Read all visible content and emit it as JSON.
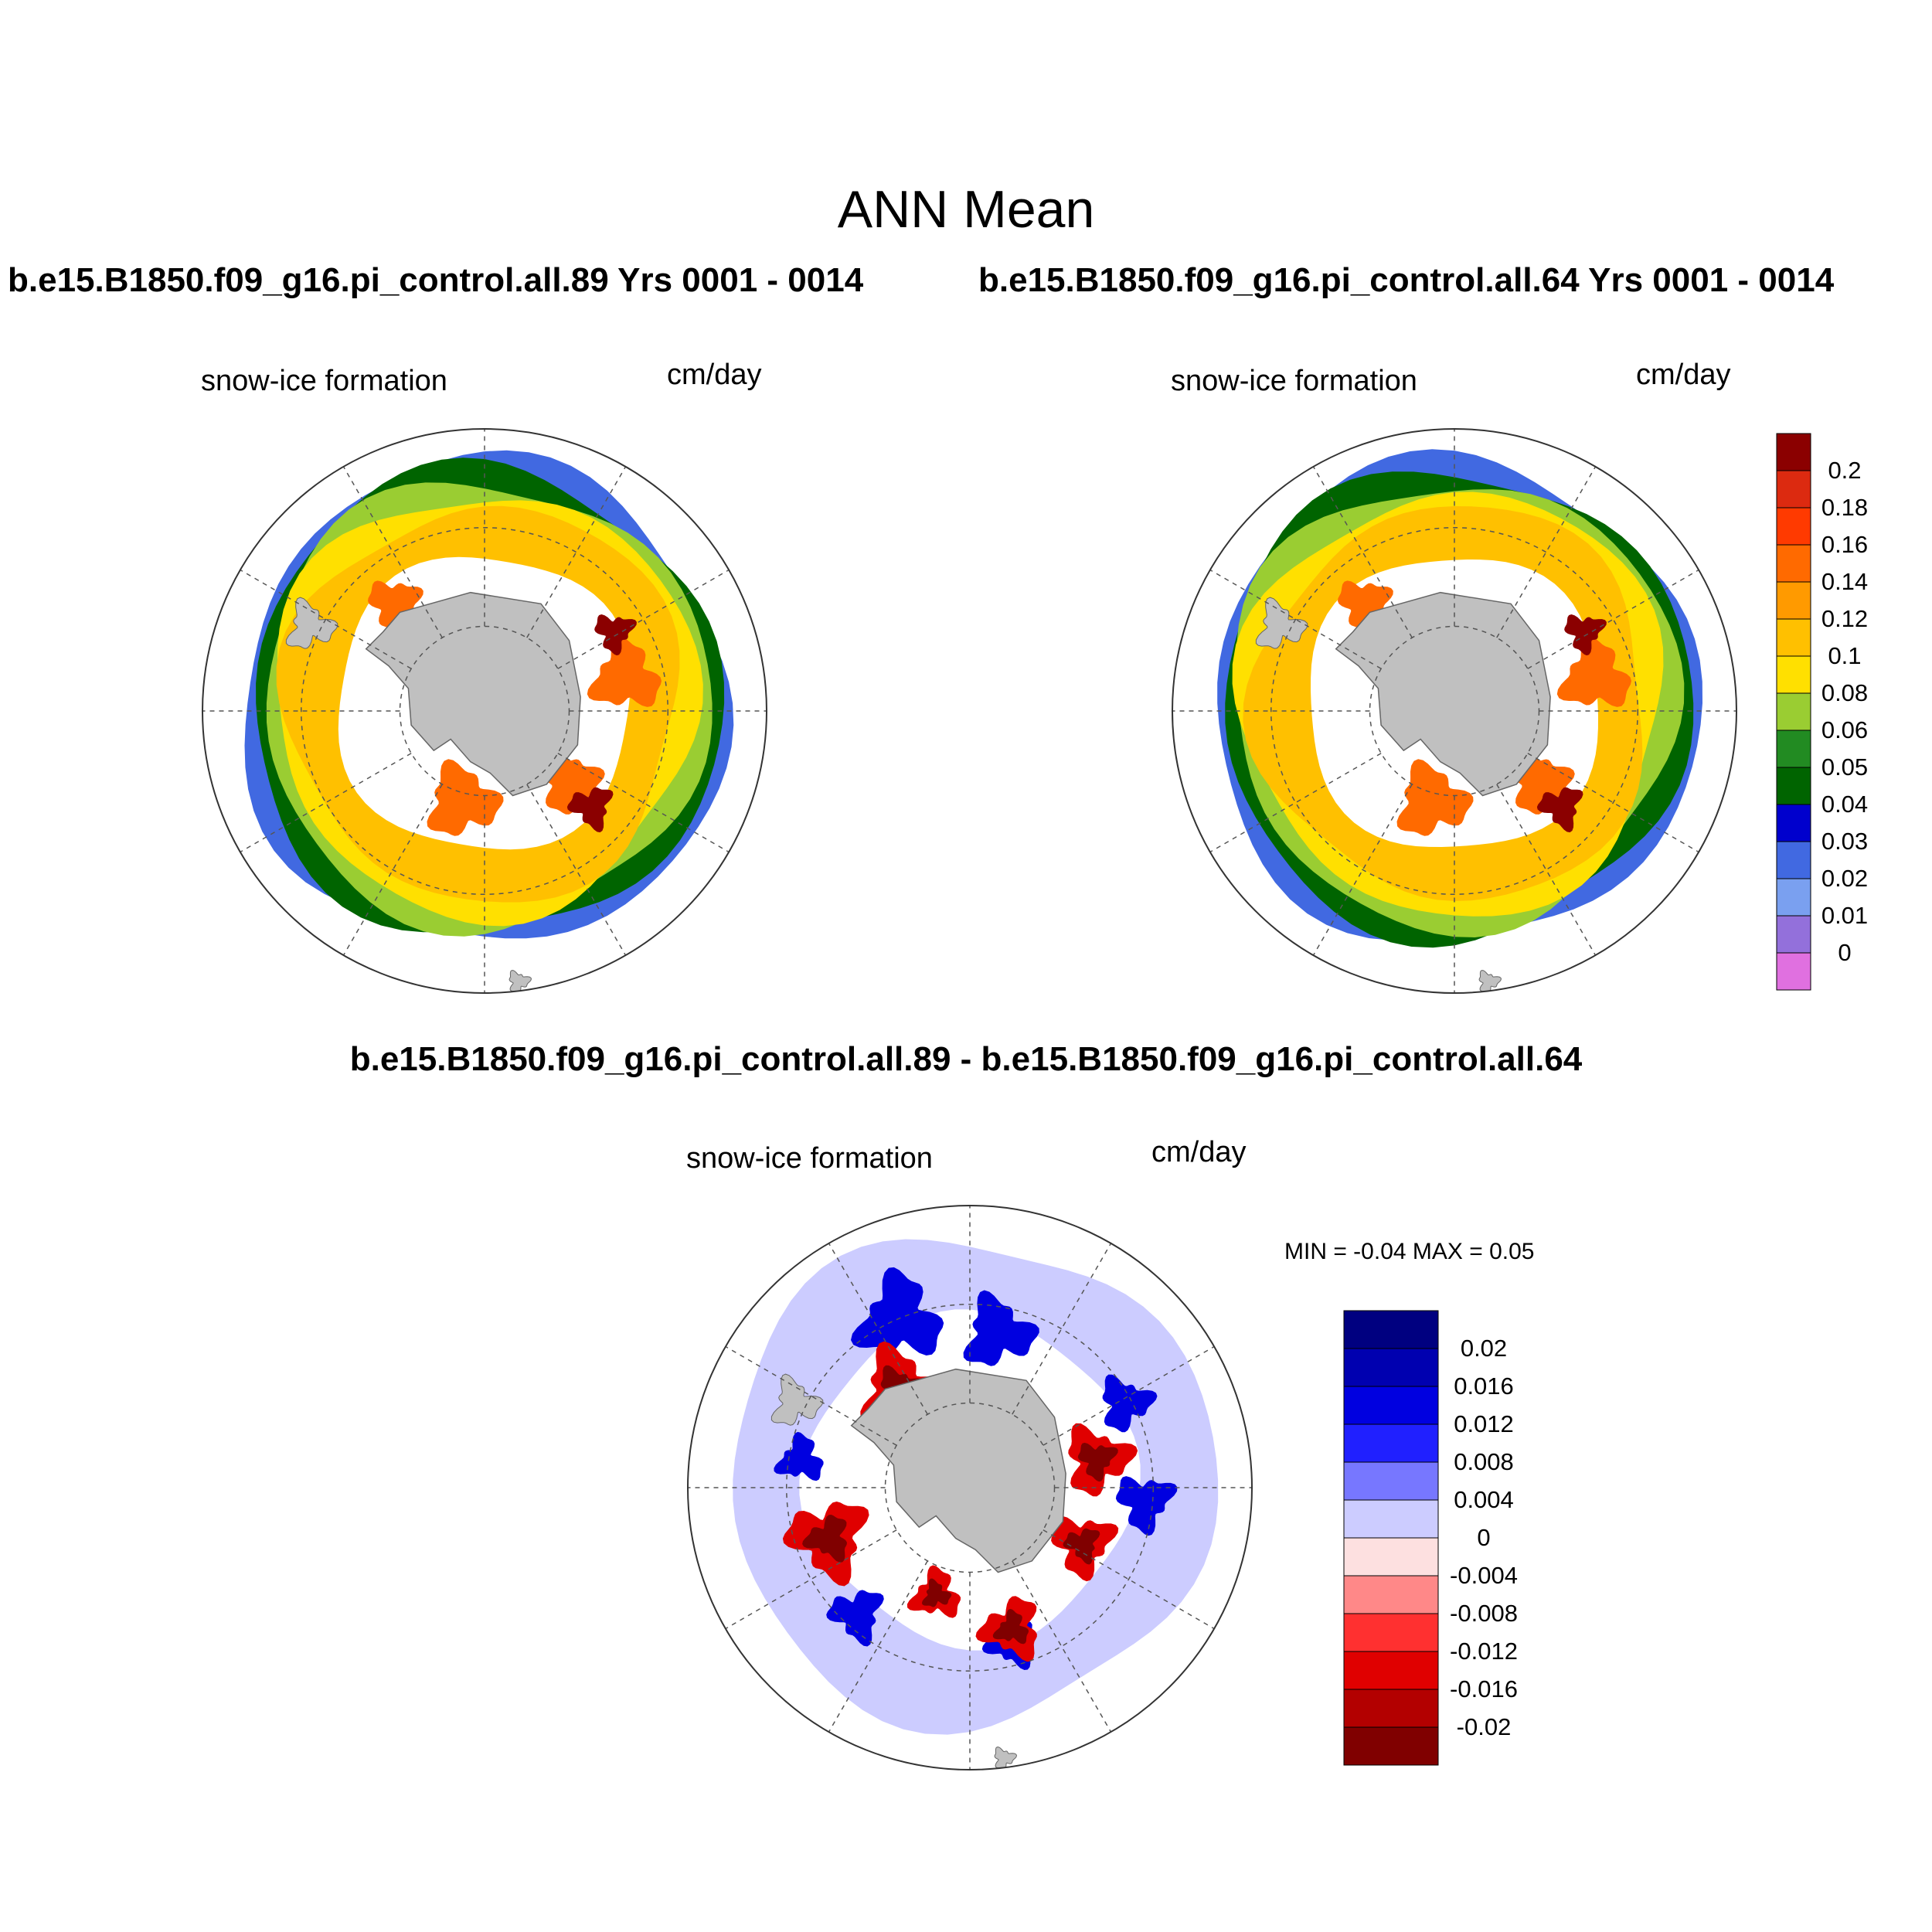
{
  "figure": {
    "title": "ANN Mean",
    "panels": [
      {
        "case": "b.e15.B1850.f09_g16.pi_control.all.89  Yrs 0001 - 0014",
        "variable": "snow-ice formation",
        "units": "cm/day"
      },
      {
        "case": "b.e15.B1850.f09_g16.pi_control.all.64  Yrs 0001 - 0014",
        "variable": "snow-ice formation",
        "units": "cm/day"
      },
      {
        "case": "b.e15.B1850.f09_g16.pi_control.all.89 - b.e15.B1850.f09_g16.pi_control.all.64",
        "variable": "snow-ice formation",
        "units": "cm/day",
        "minmax": "MIN =  -0.04 MAX =   0.05"
      }
    ]
  },
  "chart_data": [
    {
      "type": "heatmap",
      "projection": "south polar stereographic",
      "variable": "snow-ice formation",
      "units": "cm/day",
      "levels": [
        "0",
        "0.01",
        "0.02",
        "0.03",
        "0.04",
        "0.05",
        "0.06",
        "0.08",
        "0.1",
        "0.12",
        "0.14",
        "0.16",
        "0.18",
        "0.2"
      ],
      "colors": [
        "#e070e0",
        "#9370db",
        "#7aa0f0",
        "#4169e1",
        "#0000cd",
        "#006400",
        "#228b22",
        "#9acd32",
        "#ffe000",
        "#ffc000",
        "#ff9a00",
        "#ff6a00",
        "#ff3a00",
        "#dc2a10",
        "#8b0000"
      ],
      "shared_colorbar": true
    },
    {
      "type": "heatmap",
      "projection": "south polar stereographic",
      "variable": "snow-ice formation",
      "units": "cm/day",
      "levels": [
        "0.02",
        "0.016",
        "0.012",
        "0.008",
        "0.004",
        "0",
        "-0.004",
        "-0.008",
        "-0.012",
        "-0.016",
        "-0.02"
      ],
      "colors": [
        "#800000",
        "#b30000",
        "#e00000",
        "#ff3030",
        "#ff8888",
        "#fde0e0",
        "#ccccff",
        "#7777ff",
        "#2020ff",
        "#0000e0",
        "#0000b0",
        "#000080"
      ],
      "min": -0.04,
      "max": 0.05
    }
  ],
  "colors": {
    "land": "#c0c0c0",
    "graticule": "#555555"
  }
}
